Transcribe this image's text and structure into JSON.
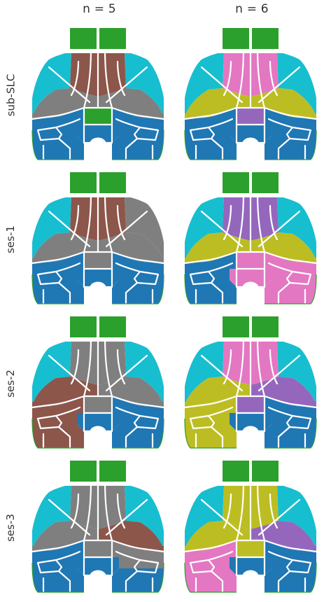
{
  "columns": [
    {
      "title": "n = 5"
    },
    {
      "title": "n = 6"
    }
  ],
  "rows": [
    {
      "label": "sub-SLC"
    },
    {
      "label": "ses-1"
    },
    {
      "label": "ses-2"
    },
    {
      "label": "ses-3"
    }
  ],
  "palette": {
    "green": "#2ca02c",
    "blue": "#1f77b4",
    "brown": "#8c564b",
    "gray": "#7f7f7f",
    "cyan": "#17becf",
    "pink": "#e377c2",
    "olive": "#bcbd22",
    "purple": "#9467bd"
  },
  "panels": [
    {
      "id": "sub-SLC|n=5",
      "regions": {
        "ob": "green",
        "m_l": "cyan",
        "m_r": "cyan",
        "m_c": "brown",
        "l_l": "gray",
        "l_r": "gray",
        "c_c": "green",
        "p_l": "blue",
        "p_r": "blue",
        "v_l": "blue",
        "v_r": "blue",
        "v_c": "blue"
      }
    },
    {
      "id": "sub-SLC|n=6",
      "regions": {
        "ob": "green",
        "m_l": "cyan",
        "m_r": "cyan",
        "m_c": "pink",
        "l_l": "olive",
        "l_r": "olive",
        "c_c": "purple",
        "p_l": "blue",
        "p_r": "blue",
        "v_l": "blue",
        "v_r": "blue",
        "v_c": "blue"
      }
    },
    {
      "id": "ses-1|n=5",
      "regions": {
        "ob": "green",
        "m_l": "cyan",
        "m_r": "gray",
        "m_c": "brown",
        "l_l": "gray",
        "l_r": "gray",
        "c_c": "gray",
        "p_l": "blue",
        "p_r": "blue",
        "v_l": "blue",
        "v_r": "blue",
        "v_c": "blue"
      }
    },
    {
      "id": "ses-1|n=6",
      "regions": {
        "ob": "green",
        "m_l": "cyan",
        "m_r": "cyan",
        "m_c": "purple",
        "l_l": "olive",
        "l_r": "olive",
        "c_c": "pink",
        "p_l": "blue",
        "p_r": "pink",
        "v_l": "blue",
        "v_r": "pink",
        "v_c": "pink"
      }
    },
    {
      "id": "ses-2|n=5",
      "regions": {
        "ob": "green",
        "m_l": "cyan",
        "m_r": "cyan",
        "m_c": "gray",
        "l_l": "brown",
        "l_r": "gray",
        "c_c": "gray",
        "p_l": "brown",
        "p_r": "blue",
        "v_l": "brown",
        "v_r": "blue",
        "v_c": "blue"
      }
    },
    {
      "id": "ses-2|n=6",
      "regions": {
        "ob": "green",
        "m_l": "cyan",
        "m_r": "cyan",
        "m_c": "pink",
        "l_l": "olive",
        "l_r": "purple",
        "c_c": "purple",
        "p_l": "olive",
        "p_r": "blue",
        "v_l": "olive",
        "v_r": "blue",
        "v_c": "blue"
      }
    },
    {
      "id": "ses-3|n=5",
      "regions": {
        "ob": "green",
        "m_l": "cyan",
        "m_r": "cyan",
        "m_c": "gray",
        "l_l": "gray",
        "l_r": "brown",
        "c_c": "gray",
        "p_l": "blue",
        "p_r": "gray",
        "v_l": "blue",
        "v_r": "blue",
        "v_c": "blue"
      }
    },
    {
      "id": "ses-3|n=6",
      "regions": {
        "ob": "green",
        "m_l": "cyan",
        "m_r": "cyan",
        "m_c": "olive",
        "l_l": "olive",
        "l_r": "purple",
        "c_c": "olive",
        "p_l": "pink",
        "p_r": "blue",
        "v_l": "pink",
        "v_r": "blue",
        "v_c": "blue"
      }
    }
  ]
}
